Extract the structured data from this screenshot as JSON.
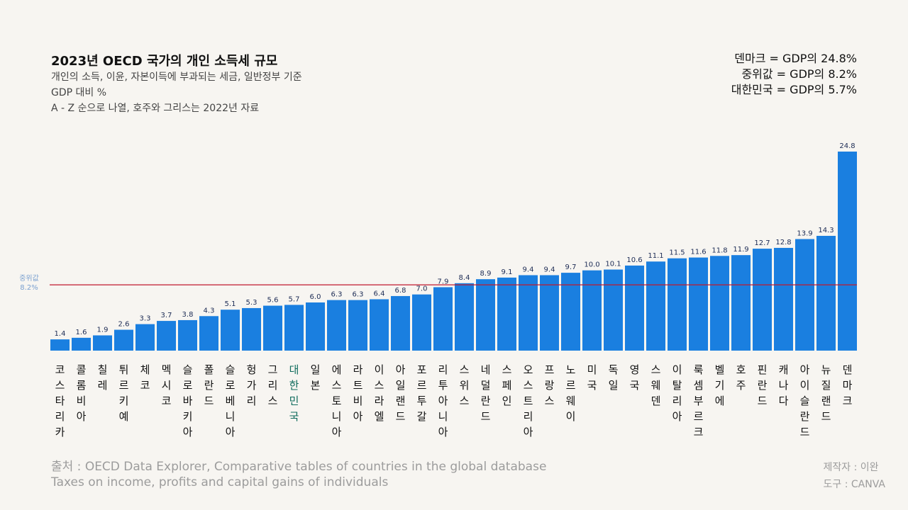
{
  "header": {
    "title": "2023년 OECD 국가의 개인 소득세 규모",
    "subtitle_lines": [
      "개인의 소득, 이윤, 자본이득에 부과되는 세금, 일반정부 기준",
      "GDP 대비 %",
      "A - Z 순으로 나열, 호주와 그리스는 2022년 자료"
    ]
  },
  "summary": [
    "덴마크 = GDP의 24.8%",
    "중위값 = GDP의 8.2%",
    "대한민국 = GDP의 5.7%"
  ],
  "footer": {
    "source_lines": [
      "출처 : OECD Data Explorer, Comparative tables of countries in the global database",
      "Taxes on income, profits and capital gains of individuals"
    ],
    "credit_lines": [
      "제작자 : 이완",
      "도구 : CANVA"
    ]
  },
  "colors": {
    "bar": "#1a7fe0",
    "highlight_label": "#0e6b5c",
    "median_line": "#c0182d",
    "median_label": "#7aa0d0",
    "value_label": "#1d2c55"
  },
  "chart_data": {
    "type": "bar",
    "categories": [
      "코스타리카",
      "콜롬비아",
      "칠레",
      "튀르키예",
      "체코",
      "멕시코",
      "슬로바키아",
      "폴란드",
      "슬로베니아",
      "헝가리",
      "그리스",
      "대한민국",
      "일본",
      "에스토니아",
      "라트비아",
      "이스라엘",
      "아일랜드",
      "포르투갈",
      "리투아니아",
      "스위스",
      "네덜란드",
      "스페인",
      "오스트리아",
      "프랑스",
      "노르웨이",
      "미국",
      "독일",
      "영국",
      "스웨덴",
      "이탈리아",
      "룩셈부르크",
      "벨기에",
      "호주",
      "핀란드",
      "캐나다",
      "아이슬란드",
      "뉴질랜드",
      "덴마크"
    ],
    "values": [
      1.4,
      1.6,
      1.9,
      2.6,
      3.3,
      3.7,
      3.8,
      4.3,
      5.1,
      5.3,
      5.6,
      5.7,
      6.0,
      6.3,
      6.3,
      6.4,
      6.8,
      7.0,
      7.9,
      8.4,
      8.9,
      9.1,
      9.4,
      9.4,
      9.7,
      10.0,
      10.1,
      10.6,
      11.1,
      11.5,
      11.6,
      11.8,
      11.9,
      12.7,
      12.8,
      13.9,
      14.3,
      24.8
    ],
    "value_labels": [
      "1.4",
      "1.6",
      "1.9",
      "2.6",
      "3.3",
      "3.7",
      "3.8",
      "4.3",
      "5.1",
      "5.3",
      "5.6",
      "5.7",
      "6.0",
      "6.3",
      "6.3",
      "6.4",
      "6.8",
      "7.0",
      "7.9",
      "8.4",
      "8.9",
      "9.1",
      "9.4",
      "9.4",
      "9.7",
      "10.0",
      "10.1",
      "10.6",
      "11.1",
      "11.5",
      "11.6",
      "11.8",
      "11.9",
      "12.7",
      "12.8",
      "13.9",
      "14.3",
      "24.8"
    ],
    "highlight": "대한민국",
    "median": {
      "value": 8.2,
      "label_lines": [
        "중위값",
        "8.2%"
      ]
    },
    "ylim": [
      0,
      24.8
    ]
  }
}
